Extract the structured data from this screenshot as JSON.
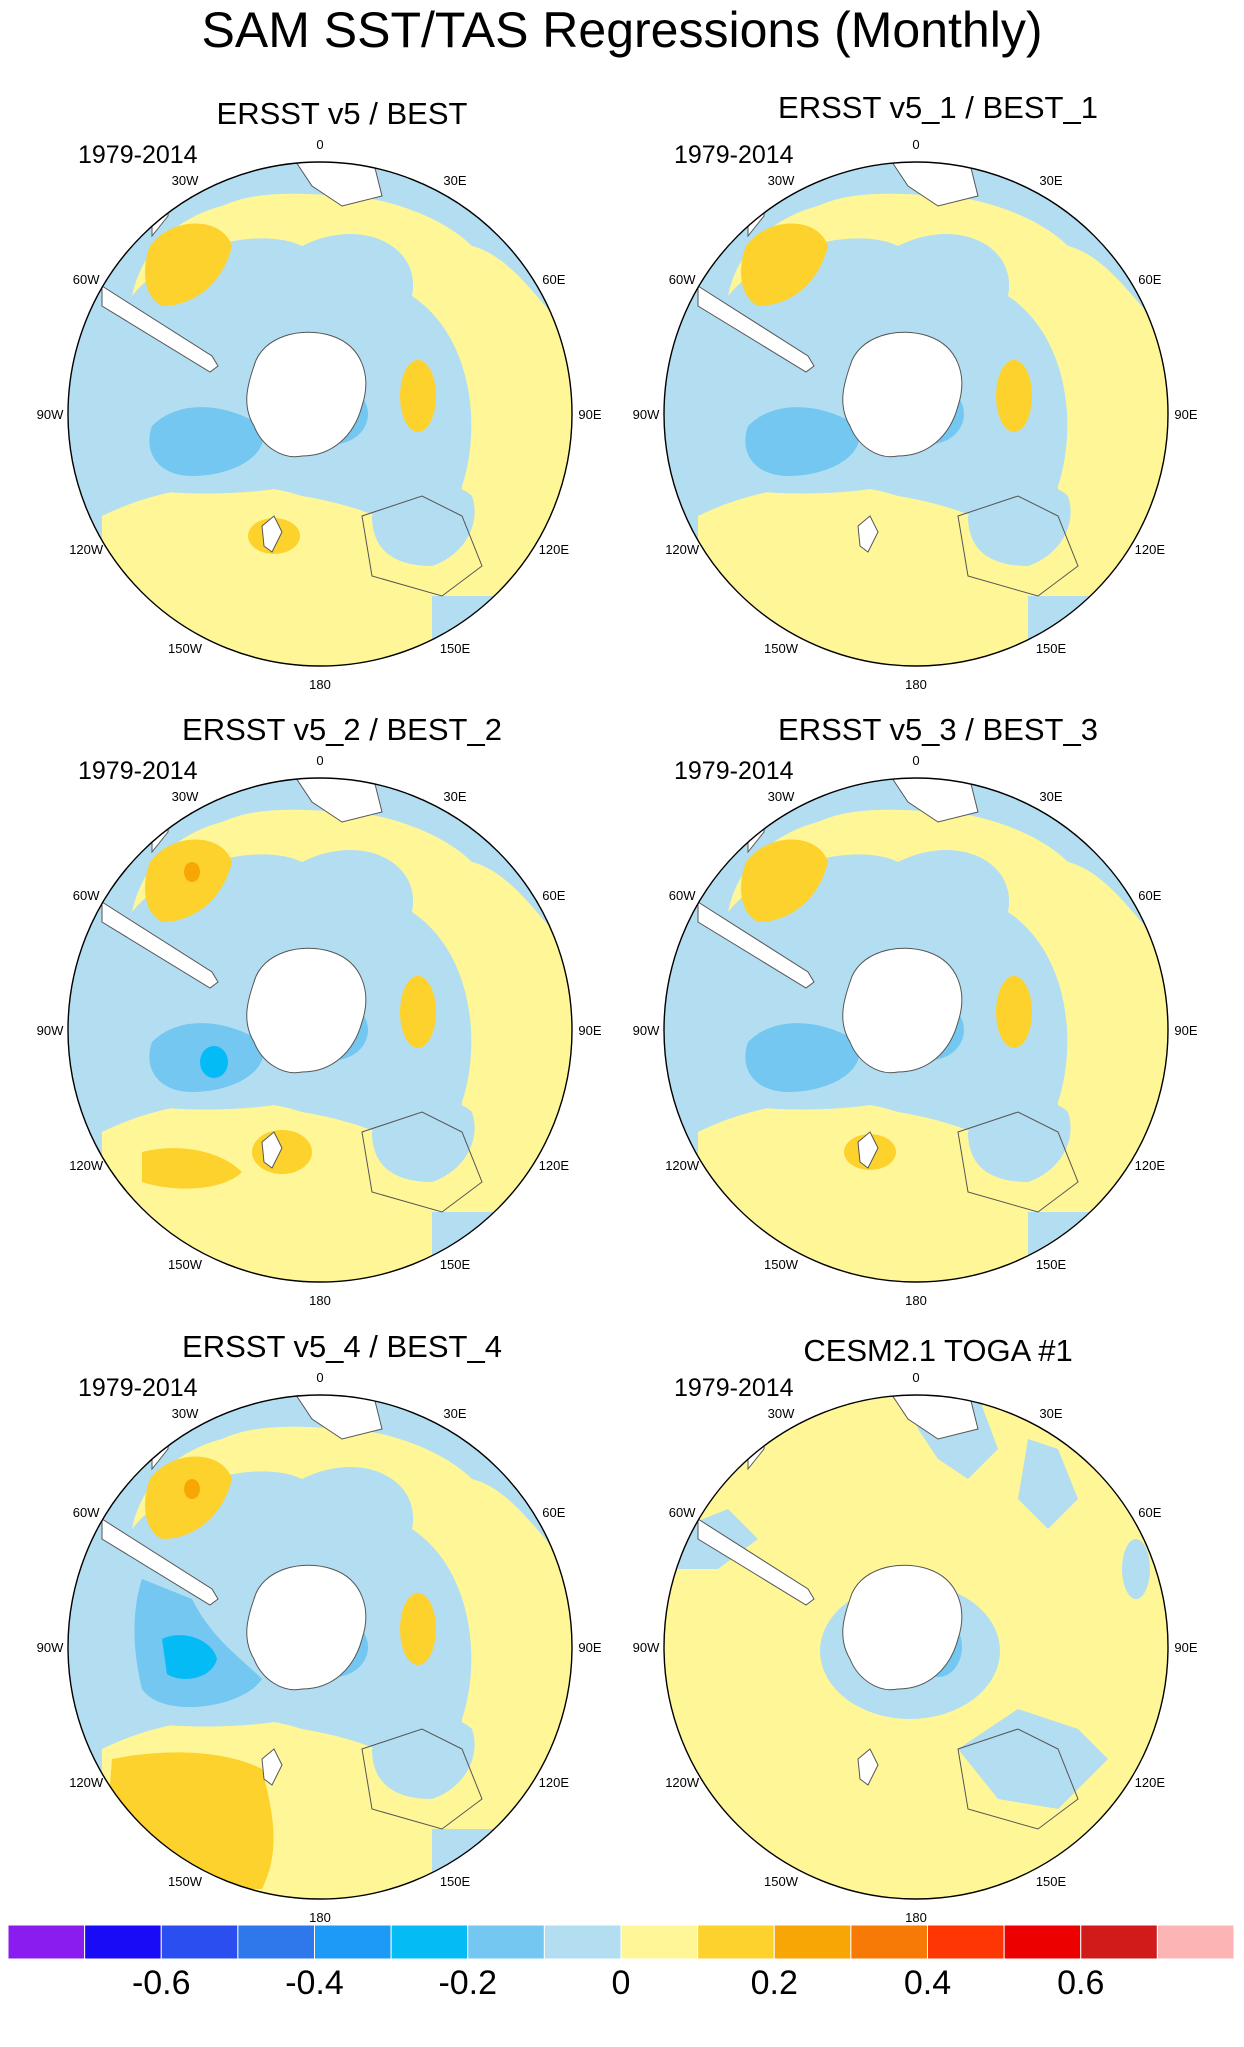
{
  "title": "SAM SST/TAS Regressions (Monthly)",
  "colors": {
    "ocean_neg_light": "#b3ddf1",
    "pos_light": "#fff797",
    "pos_mid": "#fdd22d",
    "pos_strong": "#f7a606",
    "neg_mid": "#73c7f0",
    "neg_strong": "#05bbf6",
    "coast": "#555555",
    "land_mask": "#ffffff"
  },
  "lon_labels": [
    "0",
    "30E",
    "60E",
    "90E",
    "120E",
    "150E",
    "180",
    "150W",
    "120W",
    "90W",
    "60W",
    "30W"
  ],
  "panels": [
    {
      "title": "ERSST v5 / BEST",
      "period": "1979-2014"
    },
    {
      "title": "ERSST v5_1 / BEST_1",
      "period": "1979-2014"
    },
    {
      "title": "ERSST v5_2 / BEST_2",
      "period": "1979-2014"
    },
    {
      "title": "ERSST v5_3 / BEST_3",
      "period": "1979-2014"
    },
    {
      "title": "ERSST v5_4 / BEST_4",
      "period": "1979-2014"
    },
    {
      "title": "CESM2.1 TOGA #1",
      "period": "1979-2014"
    }
  ],
  "colorbar": {
    "colors": [
      "#8a1cf0",
      "#1a0bf7",
      "#2a4ef0",
      "#2f78eb",
      "#1d9af7",
      "#05bbf6",
      "#73c7f0",
      "#b3ddf1",
      "#fff797",
      "#fdd22d",
      "#f7a606",
      "#f77a06",
      "#fe3603",
      "#ed0000",
      "#d11a1a",
      "#fdb4b4"
    ],
    "labels": [
      "-0.6",
      "-0.4",
      "-0.2",
      "0",
      "0.2",
      "0.4",
      "0.6"
    ]
  }
}
